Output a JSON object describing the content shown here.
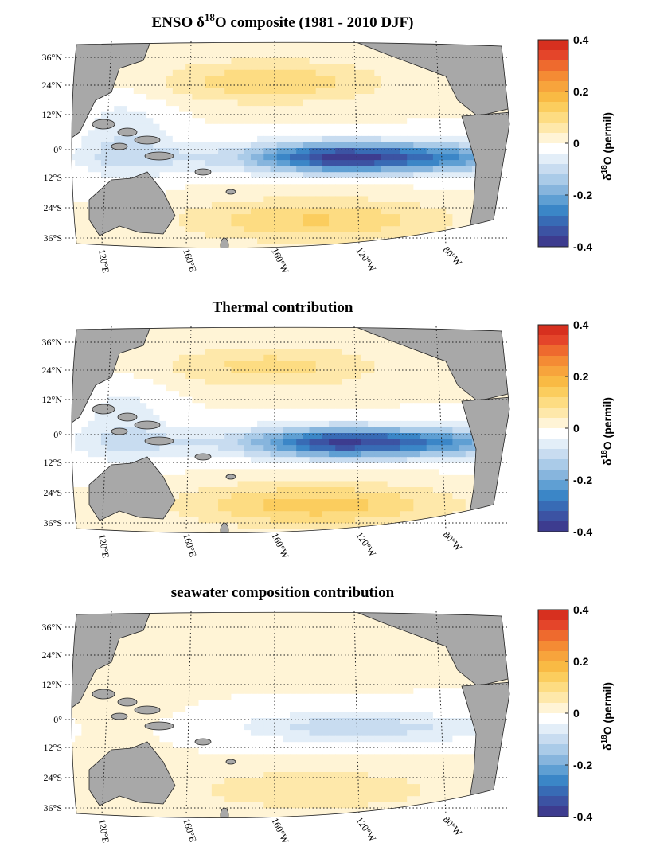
{
  "panels": [
    {
      "title_main": "ENSO δ",
      "title_sup": "18",
      "title_rest": "O composite (1981 - 2010 DJF)",
      "field": "total"
    },
    {
      "title_main": "Thermal contribution",
      "title_sup": "",
      "title_rest": "",
      "field": "thermal"
    },
    {
      "title_main": "seawater composition contribution",
      "title_sup": "",
      "title_rest": "",
      "field": "seawater"
    }
  ],
  "lat_labels": [
    "36°N",
    "24°N",
    "12°N",
    "0°",
    "12°S",
    "24°S",
    "36°S"
  ],
  "lon_labels": [
    "120°E",
    "160°E",
    "160°W",
    "120°W",
    "80°W"
  ],
  "colorbar": {
    "ticks": [
      "0.4",
      "0.2",
      "0",
      "-0.2",
      "-0.4"
    ],
    "label_delta": "δ",
    "label_sup": "18",
    "label_rest": "O (permil)",
    "range": [
      -0.4,
      0.4
    ],
    "colors": [
      "#d7301f",
      "#e4452a",
      "#ee6a2e",
      "#f48b34",
      "#f7a43c",
      "#f9ba44",
      "#fbcd5e",
      "#fddc82",
      "#fee8aa",
      "#fff4d6",
      "#ffffff",
      "#e3eef8",
      "#c8dcf0",
      "#aacbe8",
      "#87b5dd",
      "#5f9fd3",
      "#3b86c7",
      "#386bb5",
      "#3c53a3",
      "#3d3c8f"
    ]
  }
}
